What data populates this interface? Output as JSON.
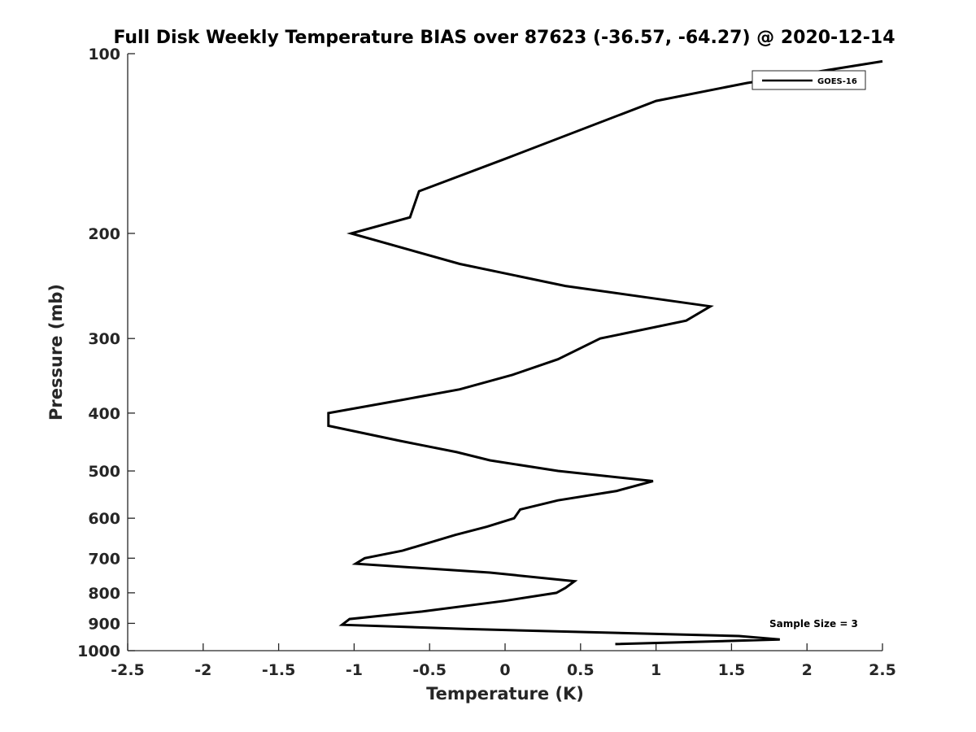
{
  "chart_data": {
    "type": "line",
    "title": "Full Disk Weekly Temperature BIAS over 87623 (-36.57, -64.27) @ 2020-12-14",
    "xlabel": "Temperature (K)",
    "ylabel": "Pressure (mb)",
    "xlim": [
      -2.5,
      2.5
    ],
    "ylim": [
      1000,
      100
    ],
    "y_scale": "log",
    "y_reversed": true,
    "x_ticks": [
      -2.5,
      -2,
      -1.5,
      -1,
      -0.5,
      0,
      0.5,
      1,
      1.5,
      2,
      2.5
    ],
    "x_tick_labels": [
      "-2.5",
      "-2",
      "-1.5",
      "-1",
      "-0.5",
      "0",
      "0.5",
      "1",
      "1.5",
      "2",
      "2.5"
    ],
    "y_ticks": [
      100,
      200,
      300,
      400,
      500,
      600,
      700,
      800,
      900,
      1000
    ],
    "y_tick_labels": [
      "100",
      "200",
      "300",
      "400",
      "500",
      "600",
      "700",
      "800",
      "900",
      "1000"
    ],
    "grid": false,
    "legend_position": "top-right",
    "series": [
      {
        "name": "GOES-16",
        "color": "#000000",
        "points": [
          [
            2.5,
            103
          ],
          [
            1.6,
            112
          ],
          [
            1.0,
            120
          ],
          [
            0.0,
            150
          ],
          [
            -0.57,
            170
          ],
          [
            -0.63,
            188
          ],
          [
            -1.02,
            200
          ],
          [
            -0.3,
            225
          ],
          [
            0.4,
            245
          ],
          [
            1.36,
            265
          ],
          [
            1.2,
            280
          ],
          [
            0.63,
            300
          ],
          [
            0.35,
            325
          ],
          [
            0.05,
            345
          ],
          [
            -0.3,
            365
          ],
          [
            -0.68,
            380
          ],
          [
            -1.17,
            400
          ],
          [
            -1.17,
            420
          ],
          [
            -0.7,
            445
          ],
          [
            -0.32,
            465
          ],
          [
            -0.1,
            480
          ],
          [
            0.35,
            500
          ],
          [
            0.98,
            520
          ],
          [
            0.74,
            540
          ],
          [
            0.35,
            560
          ],
          [
            0.1,
            580
          ],
          [
            0.06,
            600
          ],
          [
            -0.12,
            620
          ],
          [
            -0.33,
            640
          ],
          [
            -0.68,
            680
          ],
          [
            -0.93,
            700
          ],
          [
            -0.99,
            715
          ],
          [
            -0.1,
            740
          ],
          [
            0.46,
            765
          ],
          [
            0.4,
            785
          ],
          [
            0.34,
            800
          ],
          [
            0.0,
            825
          ],
          [
            -0.55,
            860
          ],
          [
            -1.03,
            885
          ],
          [
            -1.08,
            905
          ],
          [
            -0.25,
            920
          ],
          [
            1.55,
            945
          ],
          [
            1.82,
            958
          ],
          [
            0.73,
            975
          ]
        ]
      }
    ],
    "annotations": [
      {
        "text": "Sample Size = 3"
      }
    ]
  }
}
